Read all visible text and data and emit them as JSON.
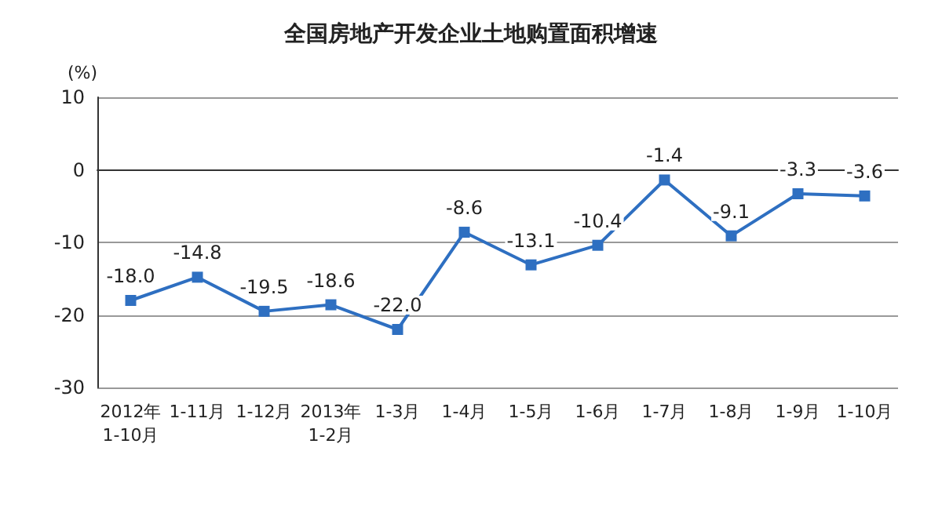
{
  "chart_data": {
    "type": "line",
    "title": "全国房地产开发企业土地购置面积增速",
    "ylabel": "(%)",
    "categories": [
      "2012年\n1-10月",
      "1-11月",
      "1-12月",
      "2013年\n1-2月",
      "1-3月",
      "1-4月",
      "1-5月",
      "1-6月",
      "1-7月",
      "1-8月",
      "1-9月",
      "1-10月"
    ],
    "series": [
      {
        "color": "#2e6fc1",
        "values": [
          -18.0,
          -14.8,
          -19.5,
          -18.6,
          -22.0,
          -8.6,
          -13.1,
          -10.4,
          -1.4,
          -9.1,
          -3.3,
          -3.6
        ],
        "value_labels": [
          "-18.0",
          "-14.8",
          "-19.5",
          "-18.6",
          "-22.0",
          "-8.6",
          "-13.1",
          "-10.4",
          "-1.4",
          "-9.1",
          "-3.3",
          "-3.6"
        ]
      }
    ],
    "ylim": [
      -30,
      10
    ],
    "yticks": [
      -30,
      -20,
      -10,
      0,
      10
    ],
    "grid": "y",
    "marker": "square",
    "line_style": "solid"
  }
}
